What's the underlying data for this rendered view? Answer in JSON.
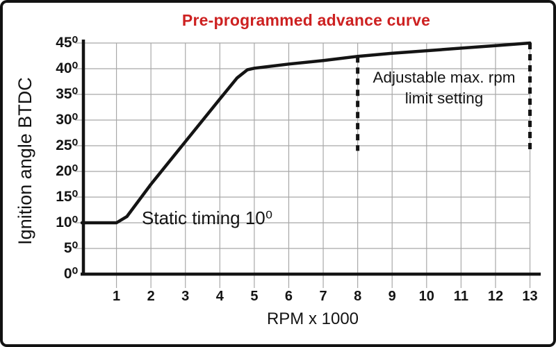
{
  "chart_data": {
    "type": "line",
    "title": "Pre-programmed advance curve",
    "xlabel": "RPM x 1000",
    "ylabel": "Ignition angle BTDC",
    "xlim": [
      0,
      13
    ],
    "ylim": [
      0,
      45
    ],
    "grid": true,
    "x_ticks": [
      {
        "v": 1,
        "label": "1"
      },
      {
        "v": 2,
        "label": "2"
      },
      {
        "v": 3,
        "label": "3"
      },
      {
        "v": 4,
        "label": "4"
      },
      {
        "v": 5,
        "label": "5"
      },
      {
        "v": 6,
        "label": "6"
      },
      {
        "v": 7,
        "label": "7"
      },
      {
        "v": 8,
        "label": "8"
      },
      {
        "v": 9,
        "label": "9"
      },
      {
        "v": 10,
        "label": "10"
      },
      {
        "v": 11,
        "label": "11"
      },
      {
        "v": 12,
        "label": "12"
      },
      {
        "v": 13,
        "label": "13"
      }
    ],
    "y_ticks": [
      {
        "v": 0,
        "label": "0⁰"
      },
      {
        "v": 5,
        "label": "5⁰"
      },
      {
        "v": 10,
        "label": "10⁰"
      },
      {
        "v": 15,
        "label": "15⁰"
      },
      {
        "v": 20,
        "label": "20⁰"
      },
      {
        "v": 25,
        "label": "25⁰"
      },
      {
        "v": 30,
        "label": "30⁰"
      },
      {
        "v": 35,
        "label": "35⁰"
      },
      {
        "v": 40,
        "label": "40⁰"
      },
      {
        "v": 45,
        "label": "45⁰"
      }
    ],
    "series": [
      {
        "name": "pre-programmed advance curve",
        "points": [
          [
            0,
            10
          ],
          [
            1,
            10
          ],
          [
            1.3,
            11.2
          ],
          [
            2,
            17.5
          ],
          [
            3,
            25.8
          ],
          [
            4,
            34.1
          ],
          [
            4.5,
            38.2
          ],
          [
            4.8,
            39.8
          ],
          [
            5,
            40.1
          ],
          [
            6,
            40.9
          ],
          [
            7,
            41.6
          ],
          [
            8,
            42.4
          ],
          [
            9,
            43.0
          ],
          [
            10,
            43.5
          ],
          [
            11,
            44.0
          ],
          [
            12,
            44.5
          ],
          [
            13,
            45.0
          ]
        ]
      }
    ],
    "limit_markers": [
      {
        "x": 8,
        "top_deg": 42.4,
        "bottom_deg": 24
      },
      {
        "x": 13,
        "top_deg": 45.0,
        "bottom_deg": 24
      }
    ],
    "annotations": {
      "static_timing": "Static timing 10⁰",
      "rpm_limit_line1": "Adjustable max. rpm",
      "rpm_limit_line2": "limit setting"
    },
    "colors": {
      "title": "#cd2121",
      "curve": "#141414",
      "axis": "#141414",
      "grid": "#a8a8a8",
      "background": "#ffffff",
      "border": "#121212"
    }
  }
}
